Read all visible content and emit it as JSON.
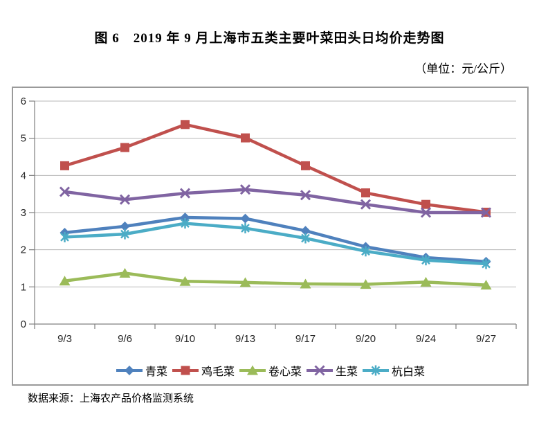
{
  "page": {
    "title": "图 6　2019 年 9 月上海市五类主要叶菜田头日均价走势图",
    "unit_note": "（单位：元/公斤）",
    "source_note": "数据来源：上海农产品价格监测系统"
  },
  "chart_data": {
    "type": "line",
    "title": "2019年9月上海市五类主要叶菜田头日均价走势图",
    "ylabel": "元/公斤",
    "xlabel": "",
    "categories": [
      "9/3",
      "9/6",
      "9/10",
      "9/13",
      "9/17",
      "9/20",
      "9/24",
      "9/27"
    ],
    "series": [
      {
        "name": "青菜",
        "color": "#4F81BD",
        "marker": "diamond",
        "values": [
          2.46,
          2.63,
          2.87,
          2.84,
          2.51,
          2.08,
          1.79,
          1.68
        ]
      },
      {
        "name": "鸡毛菜",
        "color": "#C0504D",
        "marker": "square",
        "values": [
          4.26,
          4.75,
          5.37,
          5.01,
          4.26,
          3.53,
          3.22,
          3.01
        ]
      },
      {
        "name": "卷心菜",
        "color": "#9BBB59",
        "marker": "triangle",
        "values": [
          1.16,
          1.37,
          1.15,
          1.12,
          1.08,
          1.07,
          1.13,
          1.05
        ]
      },
      {
        "name": "生菜",
        "color": "#8064A2",
        "marker": "x",
        "values": [
          3.56,
          3.35,
          3.52,
          3.62,
          3.47,
          3.22,
          3.0,
          3.0
        ]
      },
      {
        "name": "杭白菜",
        "color": "#4BACC6",
        "marker": "asterisk",
        "values": [
          2.34,
          2.42,
          2.71,
          2.58,
          2.31,
          1.96,
          1.72,
          1.62
        ]
      }
    ],
    "ylim": [
      0,
      6
    ],
    "yticks": [
      0,
      1,
      2,
      3,
      4,
      5,
      6
    ],
    "grid": true,
    "legend_position": "bottom",
    "gridline_color": "#B7B7B7",
    "axis_color": "#7F7F7F",
    "tick_label_color": "#262626"
  }
}
